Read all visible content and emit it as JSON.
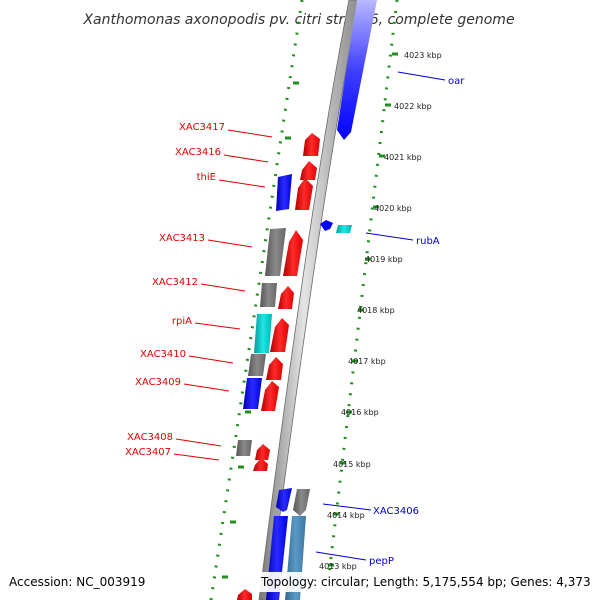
{
  "title": "Xanthomonas axonopodis pv. citri str. 306, complete genome",
  "footer": {
    "accession": "Accession: NC_003919",
    "summary": "Topology: circular; Length: 5,175,554 bp; Genes: 4,373"
  },
  "colors": {
    "background": "#ffffff",
    "backbone": "#8c8c8c",
    "backbone_highlight": "#e2e2e2",
    "tick_green": "#1f8f1f",
    "label_forward": "#e00000",
    "label_reverse": "#0000c8",
    "feature_red": "#ff0000",
    "feature_blue": "#0000ff",
    "feature_gray": "#707070",
    "feature_cyan": "#00cccc",
    "feature_steel": "#4682b4"
  },
  "ticks": [
    "4023 kbp",
    "4022 kbp",
    "4021 kbp",
    "4020 kbp",
    "4019 kbp",
    "4018 kbp",
    "4017 kbp",
    "4016 kbp",
    "4015 kbp",
    "4014 kbp",
    "4013 kbp"
  ],
  "gene_labels_left": [
    "XAC3417",
    "XAC3416",
    "thiE",
    "XAC3413",
    "XAC3412",
    "rpiA",
    "XAC3410",
    "XAC3409",
    "XAC3408",
    "XAC3407"
  ],
  "gene_labels_right": [
    "oar",
    "rubA",
    "XAC3406",
    "pepP"
  ]
}
